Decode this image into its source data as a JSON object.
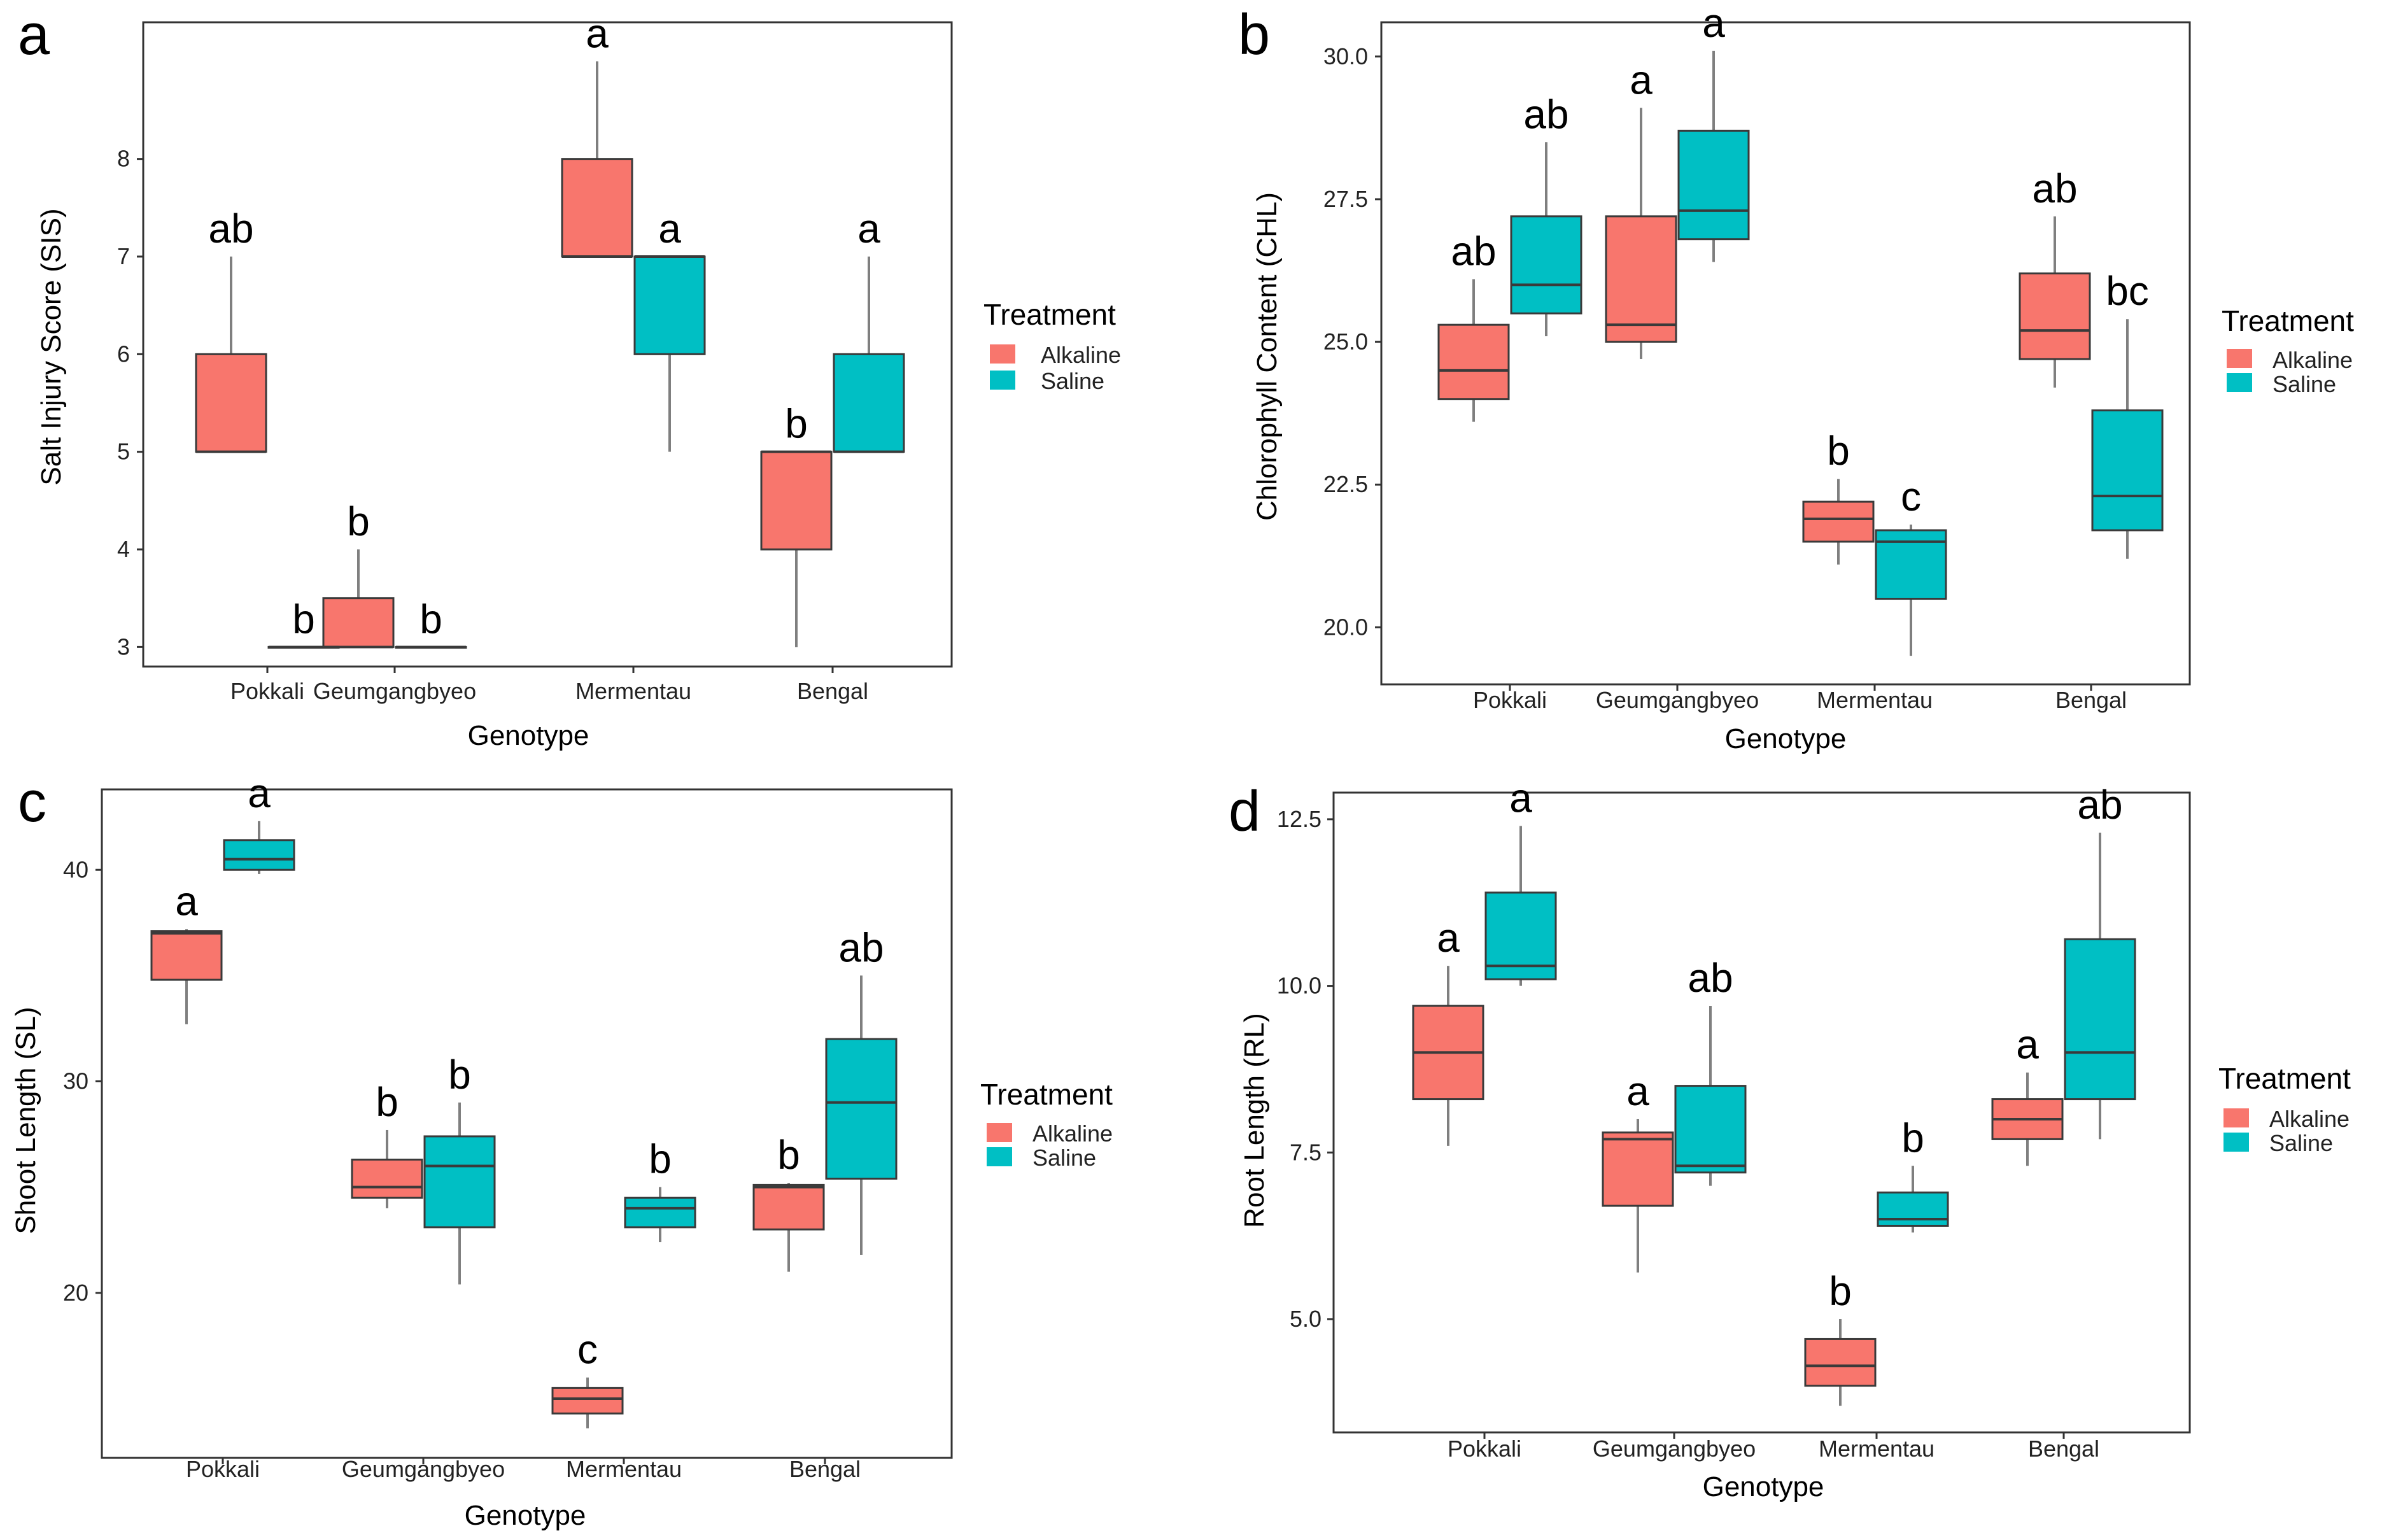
{
  "figure": {
    "colors": {
      "Alkaline": "#F8766D",
      "Saline": "#00BFC4",
      "whisker": "#7f7f7f",
      "median": "#3a3a3a"
    },
    "legend": {
      "title": "Treatment",
      "items": [
        "Alkaline",
        "Saline"
      ]
    }
  },
  "chart_data": [
    {
      "panel": "a",
      "type": "box",
      "xlabel": "Genotype",
      "ylabel": "Salt Injury Score (SIS)",
      "categories": [
        "Pokkali",
        "Geumgangbyeo",
        "Mermentau",
        "Bengal"
      ],
      "ylim": [
        2.8,
        9.4
      ],
      "yticks": [
        {
          "v": 3,
          "label": "3"
        },
        {
          "v": 4,
          "label": "4"
        },
        {
          "v": 5,
          "label": "5"
        },
        {
          "v": 6,
          "label": "6"
        },
        {
          "v": 7,
          "label": "7"
        },
        {
          "v": 8,
          "label": "8"
        }
      ],
      "series": [
        {
          "name": "Alkaline",
          "boxes": [
            {
              "min": 5,
              "q1": 5,
              "median": 5,
              "q3": 6,
              "max": 7,
              "label": "ab"
            },
            {
              "min": 3,
              "q1": 3,
              "median": 3,
              "q3": 3.5,
              "max": 4,
              "label": "b"
            },
            {
              "min": 7,
              "q1": 7,
              "median": 7,
              "q3": 8,
              "max": 9,
              "label": "a"
            },
            {
              "min": 3,
              "q1": 4,
              "median": 5,
              "q3": 5,
              "max": 5,
              "label": "b"
            }
          ]
        },
        {
          "name": "Saline",
          "boxes": [
            {
              "min": 3,
              "q1": 3,
              "median": 3,
              "q3": 3,
              "max": 3,
              "label": "b"
            },
            {
              "min": 3,
              "q1": 3,
              "median": 3,
              "q3": 3,
              "max": 3,
              "label": "b"
            },
            {
              "min": 5,
              "q1": 6,
              "median": 7,
              "q3": 7,
              "max": 7,
              "label": "a"
            },
            {
              "min": 5,
              "q1": 5,
              "median": 5,
              "q3": 6,
              "max": 7,
              "label": "a"
            }
          ]
        }
      ]
    },
    {
      "panel": "b",
      "type": "box",
      "xlabel": "Genotype",
      "ylabel": "Chlorophyll Content (CHL)",
      "categories": [
        "Pokkali",
        "Geumgangbyeo",
        "Mermentau",
        "Bengal"
      ],
      "ylim": [
        19.0,
        30.6
      ],
      "yticks": [
        {
          "v": 20,
          "label": "20.0"
        },
        {
          "v": 22.5,
          "label": "22.5"
        },
        {
          "v": 25,
          "label": "25.0"
        },
        {
          "v": 27.5,
          "label": "27.5"
        },
        {
          "v": 30,
          "label": "30.0"
        }
      ],
      "series": [
        {
          "name": "Alkaline",
          "boxes": [
            {
              "min": 23.6,
              "q1": 24.0,
              "median": 24.5,
              "q3": 25.3,
              "max": 26.1,
              "label": "ab"
            },
            {
              "min": 24.7,
              "q1": 25.0,
              "median": 25.3,
              "q3": 27.2,
              "max": 29.1,
              "label": "a"
            },
            {
              "min": 21.1,
              "q1": 21.5,
              "median": 21.9,
              "q3": 22.2,
              "max": 22.6,
              "label": "b"
            },
            {
              "min": 24.2,
              "q1": 24.7,
              "median": 25.2,
              "q3": 26.2,
              "max": 27.2,
              "label": "ab"
            }
          ]
        },
        {
          "name": "Saline",
          "boxes": [
            {
              "min": 25.1,
              "q1": 25.5,
              "median": 26.0,
              "q3": 27.2,
              "max": 28.5,
              "label": "ab"
            },
            {
              "min": 26.4,
              "q1": 26.8,
              "median": 27.3,
              "q3": 28.7,
              "max": 30.1,
              "label": "a"
            },
            {
              "min": 19.5,
              "q1": 20.5,
              "median": 21.5,
              "q3": 21.7,
              "max": 21.8,
              "label": "c"
            },
            {
              "min": 21.2,
              "q1": 21.7,
              "median": 22.3,
              "q3": 23.8,
              "max": 25.4,
              "label": "bc"
            }
          ]
        }
      ]
    },
    {
      "panel": "c",
      "type": "box",
      "xlabel": "Genotype",
      "ylabel": "Shoot Length (SL)",
      "categories": [
        "Pokkali",
        "Geumgangbyeo",
        "Mermentau",
        "Bengal"
      ],
      "ylim": [
        12.2,
        43.8
      ],
      "yticks": [
        {
          "v": 20,
          "label": "20"
        },
        {
          "v": 30,
          "label": "30"
        },
        {
          "v": 40,
          "label": "40"
        }
      ],
      "series": [
        {
          "name": "Alkaline",
          "boxes": [
            {
              "min": 32.7,
              "q1": 34.8,
              "median": 37.0,
              "q3": 37.1,
              "max": 37.2,
              "label": "a"
            },
            {
              "min": 24.0,
              "q1": 24.5,
              "median": 25.0,
              "q3": 26.3,
              "max": 27.7,
              "label": "b"
            },
            {
              "min": 13.6,
              "q1": 14.3,
              "median": 15.0,
              "q3": 15.5,
              "max": 16.0,
              "label": "c"
            },
            {
              "min": 21.0,
              "q1": 23.0,
              "median": 25.0,
              "q3": 25.1,
              "max": 25.2,
              "label": "b"
            }
          ]
        },
        {
          "name": "Saline",
          "boxes": [
            {
              "min": 39.8,
              "q1": 40.0,
              "median": 40.5,
              "q3": 41.4,
              "max": 42.3,
              "label": "a"
            },
            {
              "min": 20.4,
              "q1": 23.1,
              "median": 26.0,
              "q3": 27.4,
              "max": 29.0,
              "label": "b"
            },
            {
              "min": 22.4,
              "q1": 23.1,
              "median": 24.0,
              "q3": 24.5,
              "max": 25.0,
              "label": "b"
            },
            {
              "min": 21.8,
              "q1": 25.4,
              "median": 29.0,
              "q3": 32.0,
              "max": 35.0,
              "label": "ab"
            }
          ]
        }
      ]
    },
    {
      "panel": "d",
      "type": "box",
      "xlabel": "Genotype",
      "ylabel": "Root Length (RL)",
      "categories": [
        "Pokkali",
        "Geumgangbyeo",
        "Mermentau",
        "Bengal"
      ],
      "ylim": [
        3.3,
        12.9
      ],
      "yticks": [
        {
          "v": 5,
          "label": "5.0"
        },
        {
          "v": 7.5,
          "label": "7.5"
        },
        {
          "v": 10,
          "label": "10.0"
        },
        {
          "v": 12.5,
          "label": "12.5"
        }
      ],
      "series": [
        {
          "name": "Alkaline",
          "boxes": [
            {
              "min": 7.6,
              "q1": 8.3,
              "median": 9.0,
              "q3": 9.7,
              "max": 10.3,
              "label": "a"
            },
            {
              "min": 5.7,
              "q1": 6.7,
              "median": 7.7,
              "q3": 7.8,
              "max": 8.0,
              "label": "a"
            },
            {
              "min": 3.7,
              "q1": 4.0,
              "median": 4.3,
              "q3": 4.7,
              "max": 5.0,
              "label": "b"
            },
            {
              "min": 7.3,
              "q1": 7.7,
              "median": 8.0,
              "q3": 8.3,
              "max": 8.7,
              "label": "a"
            }
          ]
        },
        {
          "name": "Saline",
          "boxes": [
            {
              "min": 10.0,
              "q1": 10.1,
              "median": 10.3,
              "q3": 11.4,
              "max": 12.4,
              "label": "a"
            },
            {
              "min": 7.0,
              "q1": 7.2,
              "median": 7.3,
              "q3": 8.5,
              "max": 9.7,
              "label": "ab"
            },
            {
              "min": 6.3,
              "q1": 6.4,
              "median": 6.5,
              "q3": 6.9,
              "max": 7.3,
              "label": "b"
            },
            {
              "min": 7.7,
              "q1": 8.3,
              "median": 9.0,
              "q3": 10.7,
              "max": 12.3,
              "label": "ab"
            }
          ]
        }
      ]
    }
  ]
}
